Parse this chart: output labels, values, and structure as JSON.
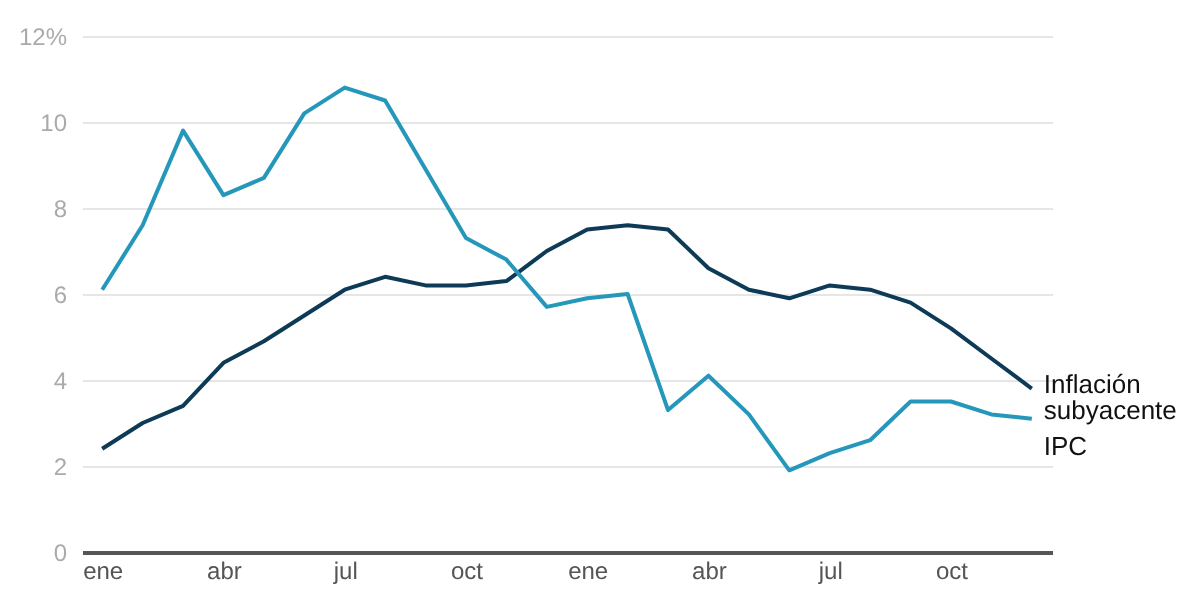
{
  "chart_data": {
    "type": "line",
    "categories": [
      "ene",
      null,
      null,
      "abr",
      null,
      null,
      "jul",
      null,
      null,
      "oct",
      null,
      null,
      "ene",
      null,
      null,
      "abr",
      null,
      null,
      "jul",
      null,
      null,
      "oct",
      null,
      null
    ],
    "series": [
      {
        "name": "Inflación subyacente",
        "color": "#0d3a56",
        "values": [
          2.4,
          3.0,
          3.4,
          4.4,
          4.9,
          5.5,
          6.1,
          6.4,
          6.2,
          6.2,
          6.3,
          7.0,
          7.5,
          7.6,
          7.5,
          6.6,
          6.1,
          5.9,
          6.2,
          6.1,
          5.8,
          5.2,
          4.5,
          3.8
        ]
      },
      {
        "name": "IPC",
        "color": "#2597bb",
        "values": [
          6.1,
          7.6,
          9.8,
          8.3,
          8.7,
          10.2,
          10.8,
          10.5,
          8.9,
          7.3,
          6.8,
          5.7,
          5.9,
          6.0,
          3.3,
          4.1,
          3.2,
          1.9,
          2.3,
          2.6,
          3.5,
          3.5,
          3.2,
          3.1
        ]
      }
    ],
    "ylim": [
      0,
      12
    ],
    "yticks": [
      0,
      2,
      4,
      6,
      8,
      10,
      {
        "value": 12,
        "label": "12%"
      }
    ],
    "grid": "y",
    "legend": false,
    "marker": "none",
    "line_style": "solid"
  }
}
